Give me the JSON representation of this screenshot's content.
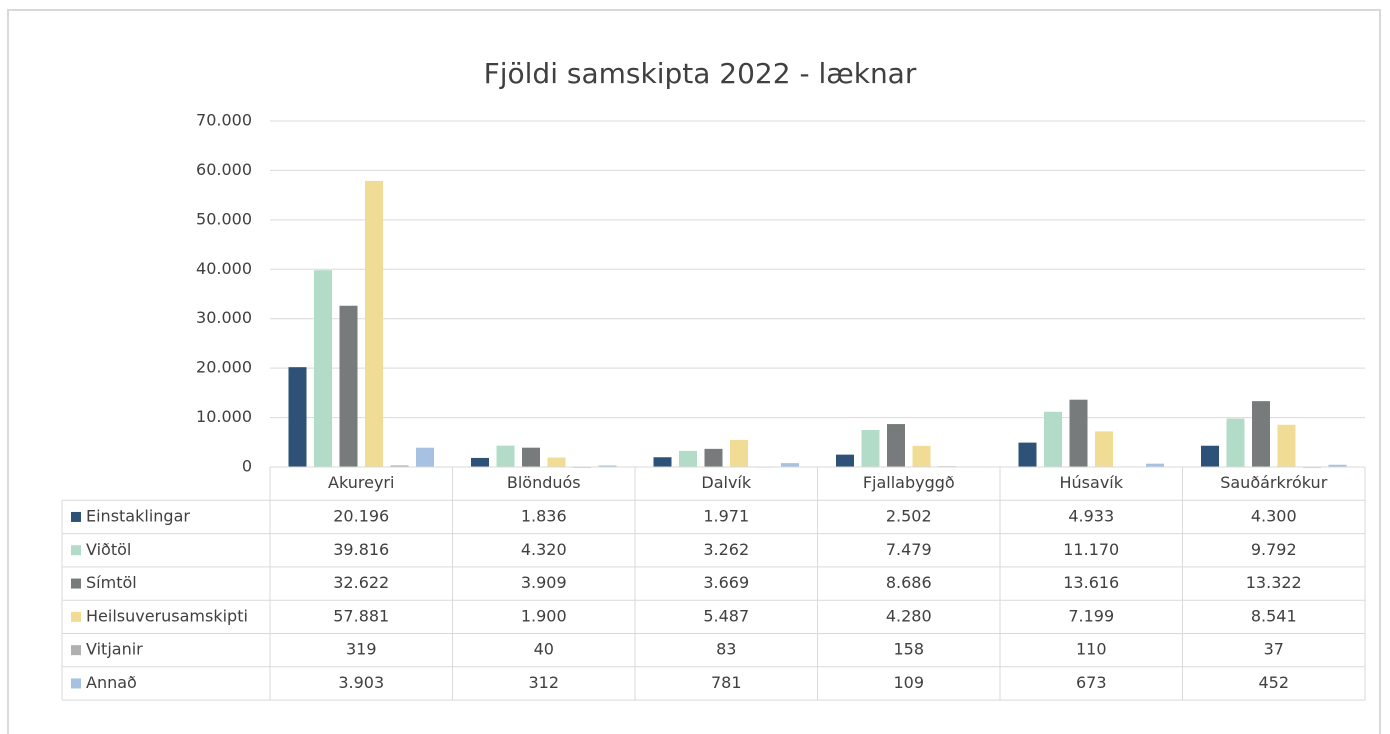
{
  "chart_data": {
    "type": "bar",
    "title": "Fjöldi samskipta 2022 - læknar",
    "categories": [
      "Akureyri",
      "Blönduós",
      "Dalvík",
      "Fjallabyggð",
      "Húsavík",
      "Sauðárkrókur"
    ],
    "series": [
      {
        "name": "Einstaklingar",
        "color": "#2e5178",
        "values": [
          20196,
          1836,
          1971,
          2502,
          4933,
          4300
        ],
        "value_labels": [
          "20.196",
          "1.836",
          "1.971",
          "2.502",
          "4.933",
          "4.300"
        ]
      },
      {
        "name": "Viðtöl",
        "color": "#b3dcc8",
        "values": [
          39816,
          4320,
          3262,
          7479,
          11170,
          9792
        ],
        "value_labels": [
          "39.816",
          "4.320",
          "3.262",
          "7.479",
          "11.170",
          "9.792"
        ]
      },
      {
        "name": "Símtöl",
        "color": "#777b7b",
        "values": [
          32622,
          3909,
          3669,
          8686,
          13616,
          13322
        ],
        "value_labels": [
          "32.622",
          "3.909",
          "3.669",
          "8.686",
          "13.616",
          "13.322"
        ]
      },
      {
        "name": "Heilsuverusamskipti",
        "color": "#f0dc95",
        "values": [
          57881,
          1900,
          5487,
          4280,
          7199,
          8541
        ],
        "value_labels": [
          "57.881",
          "1.900",
          "5.487",
          "4.280",
          "7.199",
          "8.541"
        ]
      },
      {
        "name": "Vitjanir",
        "color": "#b0b0b0",
        "values": [
          319,
          40,
          83,
          158,
          110,
          37
        ]
      },
      {
        "name": "Annað",
        "color": "#a7c1e2",
        "values": [
          3903,
          312,
          781,
          109,
          673,
          452
        ],
        "value_labels": [
          "3.903",
          "312",
          "781",
          "109",
          "673",
          "452"
        ]
      }
    ],
    "ylim": [
      0,
      70000
    ],
    "yticks": [
      0,
      {
        "value": 10000,
        "label": "10.000"
      },
      {
        "value": 20000,
        "label": "20.000"
      },
      {
        "value": 30000,
        "label": "30.000"
      },
      {
        "value": 40000,
        "label": "40.000"
      },
      {
        "value": 50000,
        "label": "50.000"
      },
      {
        "value": 60000,
        "label": "60.000"
      },
      {
        "value": 70000,
        "label": "70.000"
      }
    ],
    "grid": true
  }
}
